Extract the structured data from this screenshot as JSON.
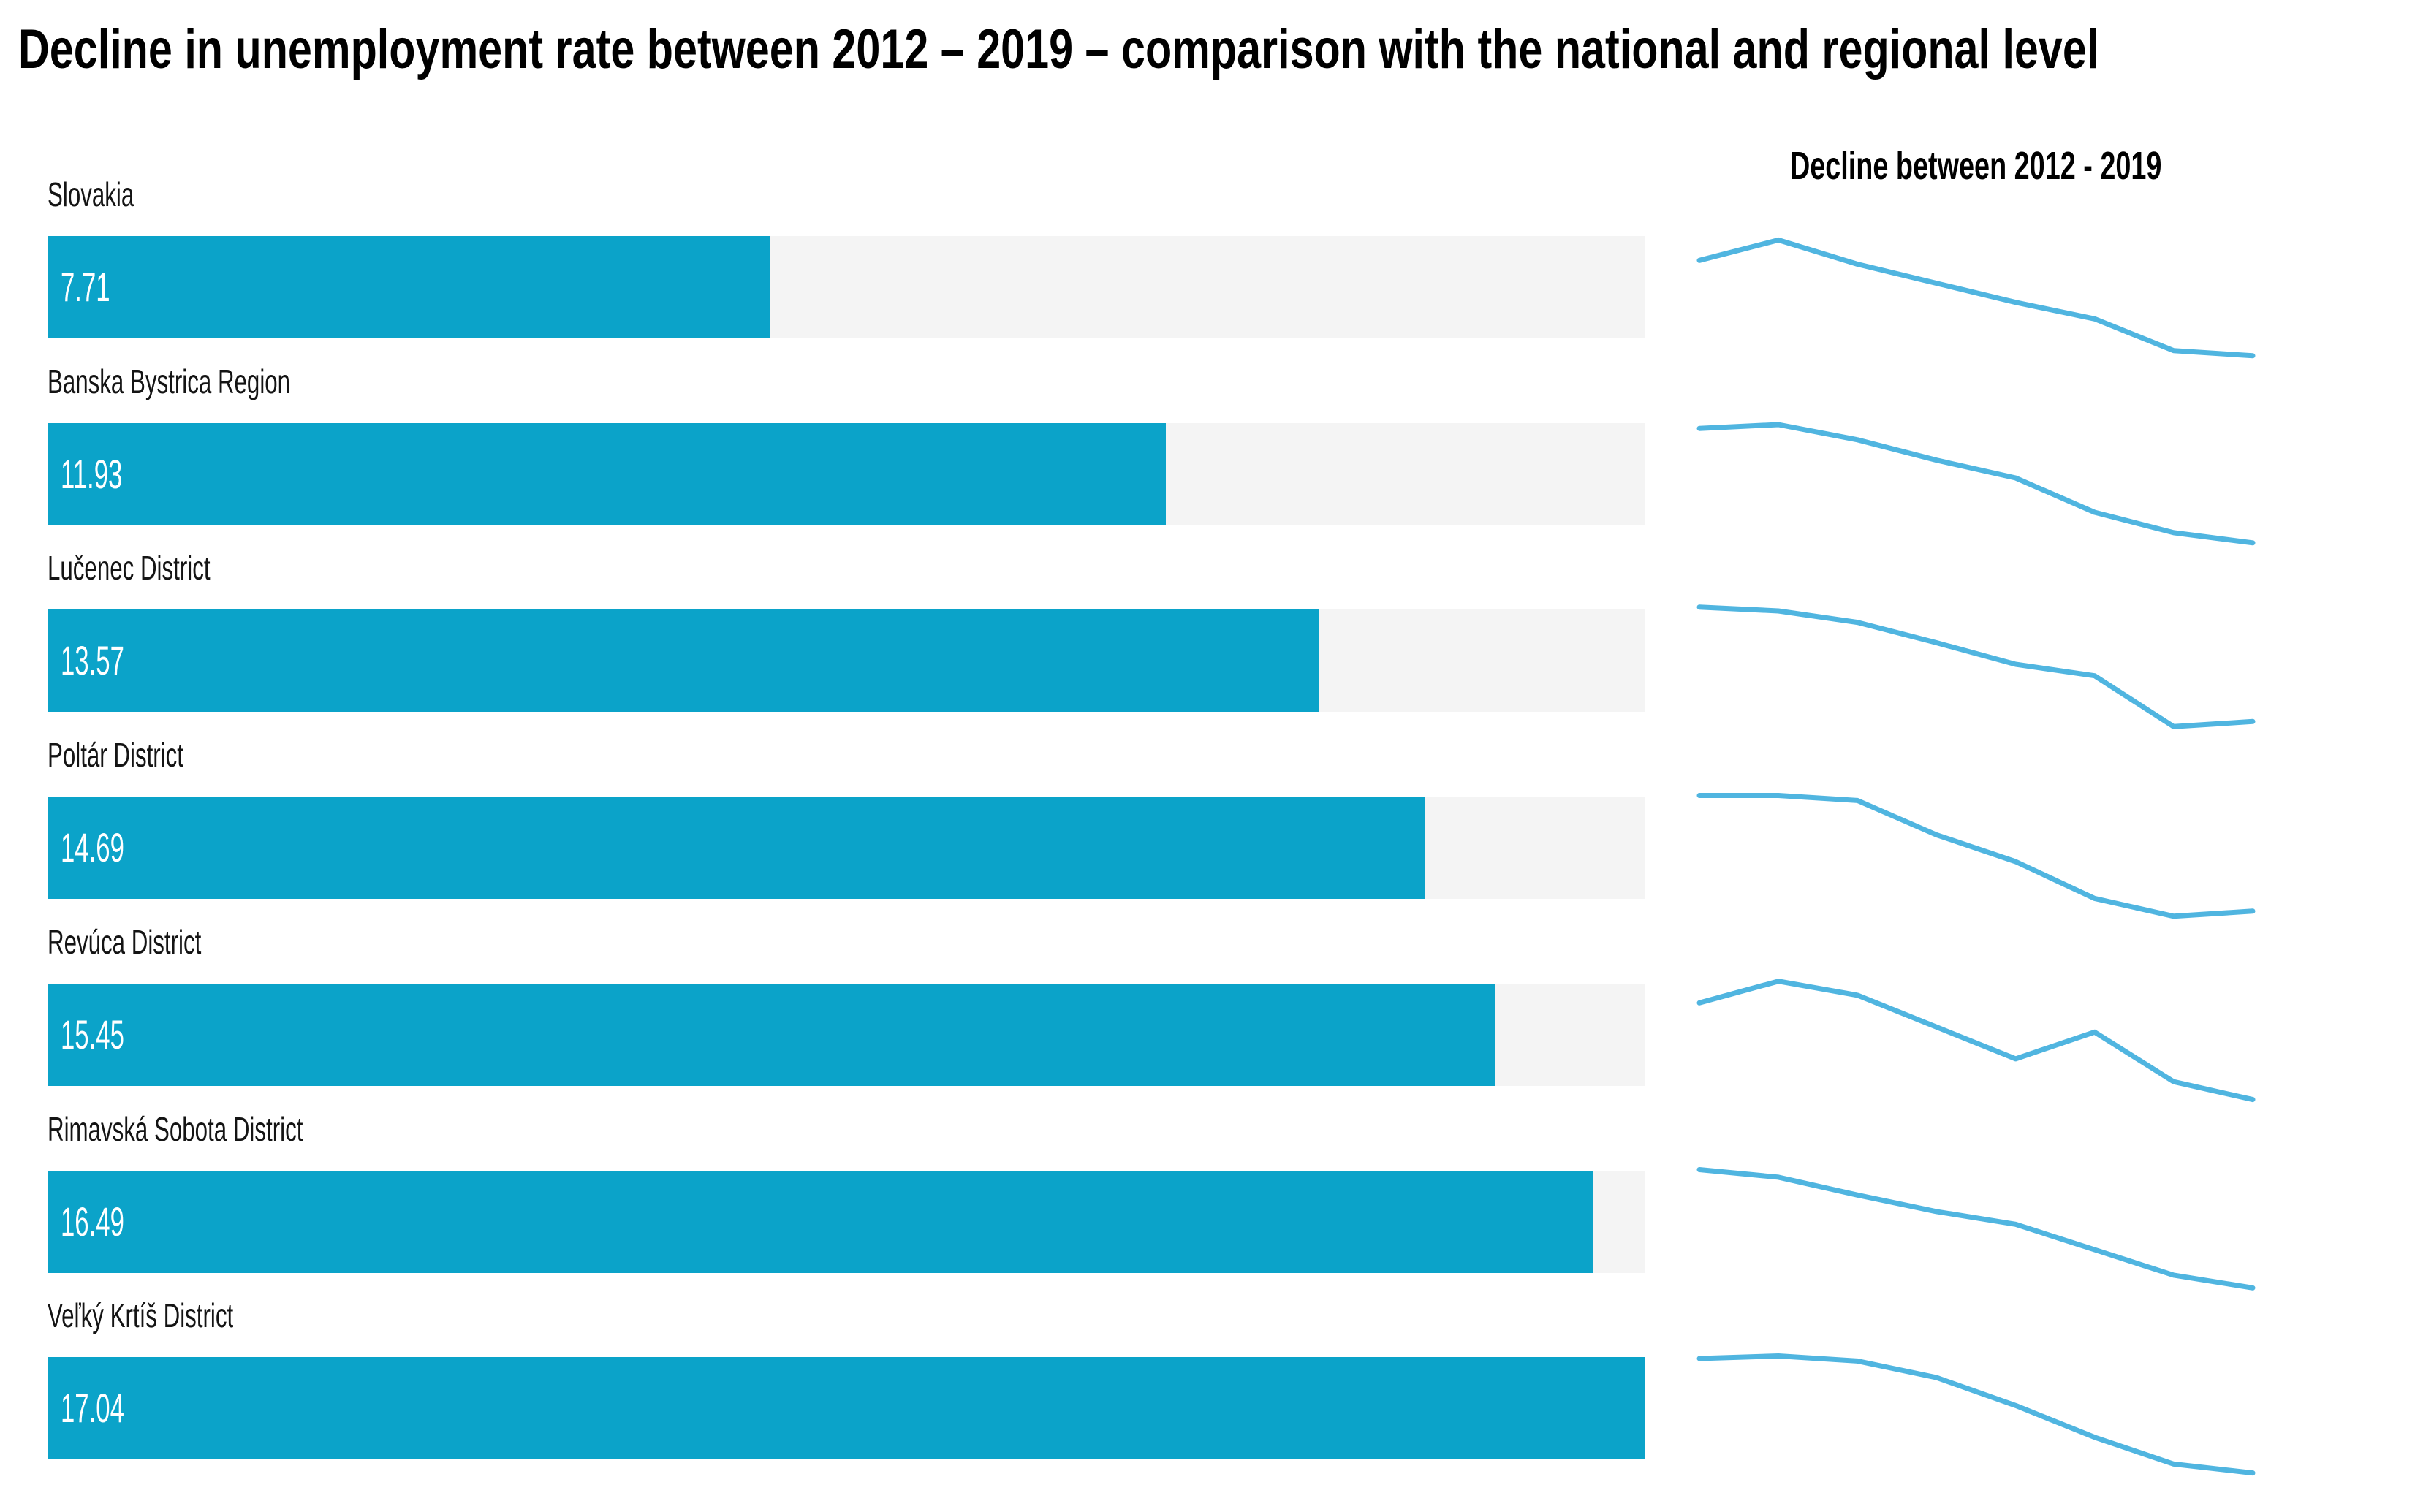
{
  "header": {
    "title": "Decline in unemployment rate between 2012 – 2019 – comparison with the national and regional level"
  },
  "sparkline_panel": {
    "title": "Decline between 2012 - 2019"
  },
  "colors": {
    "bar_fill": "#0ba3c9",
    "bar_track": "#f4f4f4",
    "sparkline": "#50b5e0",
    "title_text": "#000000",
    "label_text": "#141414",
    "value_text": "#ffffff"
  },
  "chart_data": {
    "type": "bar",
    "title": "Decline in unemployment rate between 2012 – 2019 – comparison with the national and regional level",
    "orientation": "horizontal",
    "categories": [
      "Slovakia",
      "Banska Bystrica Region",
      "Lučenec District",
      "Poltár District",
      "Revúca District",
      "Rimavská Sobota District",
      "Veľký Krtíš District"
    ],
    "values": [
      7.71,
      11.93,
      13.57,
      14.69,
      15.45,
      16.49,
      17.04
    ],
    "value_labels": [
      "7.71",
      "11.93",
      "13.57",
      "14.69",
      "15.45",
      "16.49",
      "17.04"
    ],
    "xlim": [
      0,
      17.04
    ],
    "grid": false,
    "legend": "none",
    "sparklines": {
      "title": "Decline between 2012 - 2019",
      "type": "line",
      "points_per_series": 8,
      "series": [
        {
          "name": "Slovakia",
          "shape_y_normalized": [
            0.22,
            0.06,
            0.25,
            0.4,
            0.55,
            0.68,
            0.93,
            0.97
          ]
        },
        {
          "name": "Banska Bystrica Region",
          "shape_y_normalized": [
            0.07,
            0.04,
            0.16,
            0.32,
            0.46,
            0.73,
            0.89,
            0.97
          ]
        },
        {
          "name": "Lučenec District",
          "shape_y_normalized": [
            0.01,
            0.04,
            0.13,
            0.29,
            0.46,
            0.55,
            0.95,
            0.91
          ]
        },
        {
          "name": "Poltár District",
          "shape_y_normalized": [
            0.02,
            0.02,
            0.06,
            0.33,
            0.54,
            0.83,
            0.97,
            0.93
          ]
        },
        {
          "name": "Revúca District",
          "shape_y_normalized": [
            0.18,
            0.01,
            0.12,
            0.37,
            0.62,
            0.41,
            0.8,
            0.94
          ]
        },
        {
          "name": "Rimavská Sobota District",
          "shape_y_normalized": [
            0.02,
            0.08,
            0.22,
            0.35,
            0.45,
            0.65,
            0.85,
            0.95
          ]
        },
        {
          "name": "Veľký Krtíš District",
          "shape_y_normalized": [
            0.04,
            0.02,
            0.06,
            0.19,
            0.41,
            0.66,
            0.87,
            0.94
          ]
        }
      ]
    }
  }
}
